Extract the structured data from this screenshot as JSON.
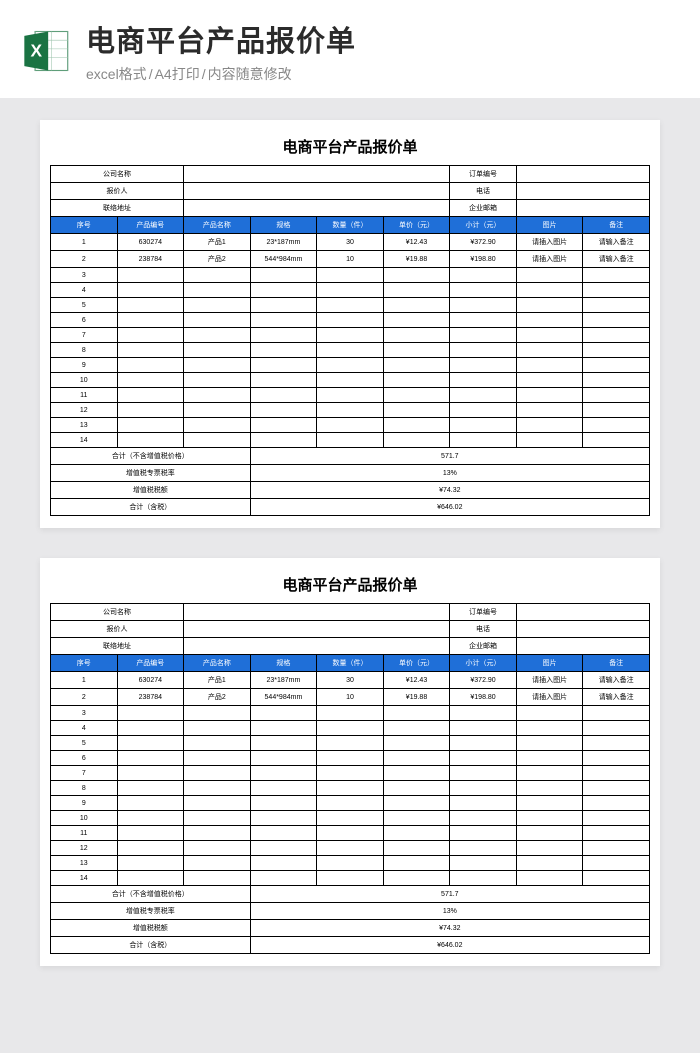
{
  "header": {
    "main_title": "电商平台产品报价单",
    "sub_format": "excel格式",
    "sub_print": "A4打印",
    "sub_edit": "内容随意修改"
  },
  "sheet": {
    "title": "电商平台产品报价单",
    "info": {
      "company_label": "公司名称",
      "orderno_label": "订单编号",
      "quoter_label": "报价人",
      "phone_label": "电话",
      "address_label": "联络地址",
      "email_label": "企业邮箱"
    },
    "columns": {
      "seq": "序号",
      "code": "产品编号",
      "name": "产品名称",
      "spec": "规格",
      "qty": "数量（件）",
      "price": "单价（元）",
      "subtotal": "小计（元）",
      "img": "图片",
      "note": "备注"
    },
    "rows": [
      {
        "seq": "1",
        "code": "630274",
        "name": "产品1",
        "spec": "23*187mm",
        "qty": "30",
        "price": "¥12.43",
        "subtotal": "¥372.90",
        "img": "请插入图片",
        "note": "请输入备注"
      },
      {
        "seq": "2",
        "code": "238784",
        "name": "产品2",
        "spec": "544*984mm",
        "qty": "10",
        "price": "¥19.88",
        "subtotal": "¥198.80",
        "img": "请插入图片",
        "note": "请输入备注"
      },
      {
        "seq": "3"
      },
      {
        "seq": "4"
      },
      {
        "seq": "5"
      },
      {
        "seq": "6"
      },
      {
        "seq": "7"
      },
      {
        "seq": "8"
      },
      {
        "seq": "9"
      },
      {
        "seq": "10"
      },
      {
        "seq": "11"
      },
      {
        "seq": "12"
      },
      {
        "seq": "13"
      },
      {
        "seq": "14"
      }
    ],
    "summary": {
      "total_ex_label": "合计（不含增值税价格）",
      "total_ex": "571.7",
      "taxrate_label": "增值税专票税率",
      "taxrate": "13%",
      "tax_label": "增值税税额",
      "tax": "¥74.32",
      "total_inc_label": "合计（含税）",
      "total_inc": "¥646.02"
    }
  },
  "styling": {
    "header_bg": "#1f6fd8",
    "border_color": "#000000",
    "page_bg": "#e8e8ea",
    "sheet_bg": "#ffffff",
    "title_fontsize": 15,
    "cell_fontsize": 7
  }
}
